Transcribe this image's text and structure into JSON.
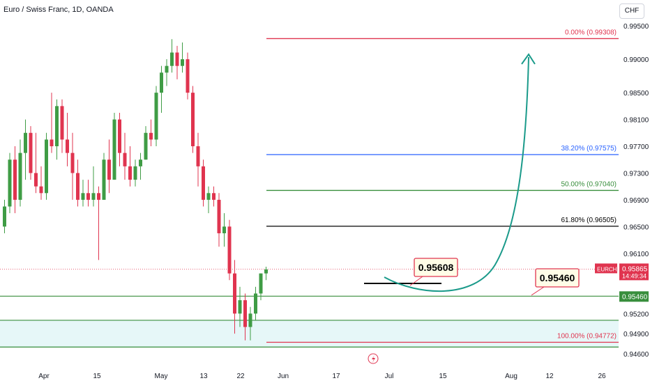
{
  "header": {
    "title": "Euro / Swiss Franc, 1D, OANDA",
    "currency": "CHF"
  },
  "chart_data": {
    "type": "candlestick",
    "symbol": "EURCHF",
    "y_ticks": [
      "0.99500",
      "0.99000",
      "0.98500",
      "0.98100",
      "0.97700",
      "0.97300",
      "0.96900",
      "0.96500",
      "0.96100",
      "0.95200",
      "0.94900",
      "0.94600"
    ],
    "x_ticks": [
      "Apr",
      "15",
      "May",
      "13",
      "22",
      "Jun",
      "17",
      "Jul",
      "15",
      "Aug",
      "12",
      "26"
    ],
    "price_label": {
      "symbol": "EURCHF",
      "price": "0.95865",
      "countdown": "14:49:34"
    },
    "level_tag": "0.95460",
    "callouts": [
      "0.95608",
      "0.95460"
    ],
    "fib_levels": [
      {
        "label": "0.00% (0.99308)",
        "price": 0.99308,
        "color": "#e0344f"
      },
      {
        "label": "38.20% (0.97575)",
        "price": 0.97575,
        "color": "#2962ff"
      },
      {
        "label": "50.00% (0.97040)",
        "price": 0.9704,
        "color": "#388e3c"
      },
      {
        "label": "61.80% (0.96505)",
        "price": 0.96505,
        "color": "#000000"
      },
      {
        "label": "100.00% (0.94772)",
        "price": 0.94772,
        "color": "#e0344f"
      }
    ],
    "support_zone": [
      0.947,
      0.951
    ],
    "support_line": 0.9546,
    "candles": [
      [
        0.965,
        0.969,
        0.964,
        0.968
      ],
      [
        0.968,
        0.976,
        0.967,
        0.975
      ],
      [
        0.975,
        0.977,
        0.967,
        0.969
      ],
      [
        0.969,
        0.978,
        0.968,
        0.976
      ],
      [
        0.976,
        0.981,
        0.972,
        0.979
      ],
      [
        0.979,
        0.98,
        0.972,
        0.973
      ],
      [
        0.973,
        0.979,
        0.97,
        0.971
      ],
      [
        0.971,
        0.974,
        0.969,
        0.97
      ],
      [
        0.97,
        0.979,
        0.969,
        0.978
      ],
      [
        0.978,
        0.985,
        0.976,
        0.977
      ],
      [
        0.977,
        0.984,
        0.975,
        0.983
      ],
      [
        0.983,
        0.984,
        0.976,
        0.978
      ],
      [
        0.978,
        0.982,
        0.974,
        0.976
      ],
      [
        0.976,
        0.979,
        0.969,
        0.973
      ],
      [
        0.973,
        0.975,
        0.968,
        0.969
      ],
      [
        0.969,
        0.972,
        0.968,
        0.97
      ],
      [
        0.97,
        0.972,
        0.968,
        0.969
      ],
      [
        0.969,
        0.974,
        0.968,
        0.97
      ],
      [
        0.97,
        0.971,
        0.96,
        0.969
      ],
      [
        0.969,
        0.976,
        0.969,
        0.975
      ],
      [
        0.975,
        0.978,
        0.97,
        0.972
      ],
      [
        0.972,
        0.982,
        0.972,
        0.981
      ],
      [
        0.981,
        0.982,
        0.974,
        0.976
      ],
      [
        0.976,
        0.979,
        0.972,
        0.974
      ],
      [
        0.974,
        0.977,
        0.971,
        0.972
      ],
      [
        0.972,
        0.975,
        0.971,
        0.974
      ],
      [
        0.974,
        0.976,
        0.972,
        0.975
      ],
      [
        0.975,
        0.98,
        0.975,
        0.979
      ],
      [
        0.979,
        0.981,
        0.977,
        0.978
      ],
      [
        0.978,
        0.986,
        0.977,
        0.985
      ],
      [
        0.985,
        0.989,
        0.982,
        0.988
      ],
      [
        0.988,
        0.99,
        0.986,
        0.989
      ],
      [
        0.989,
        0.993,
        0.988,
        0.991
      ],
      [
        0.991,
        0.992,
        0.987,
        0.989
      ],
      [
        0.989,
        0.9925,
        0.988,
        0.99
      ],
      [
        0.99,
        0.991,
        0.984,
        0.985
      ],
      [
        0.985,
        0.986,
        0.976,
        0.977
      ],
      [
        0.977,
        0.979,
        0.971,
        0.974
      ],
      [
        0.974,
        0.975,
        0.968,
        0.969
      ],
      [
        0.969,
        0.971,
        0.967,
        0.97
      ],
      [
        0.97,
        0.971,
        0.968,
        0.969
      ],
      [
        0.969,
        0.97,
        0.962,
        0.964
      ],
      [
        0.964,
        0.967,
        0.962,
        0.965
      ],
      [
        0.965,
        0.966,
        0.957,
        0.958
      ],
      [
        0.958,
        0.96,
        0.949,
        0.952
      ],
      [
        0.952,
        0.956,
        0.95,
        0.954
      ],
      [
        0.954,
        0.955,
        0.948,
        0.95
      ],
      [
        0.95,
        0.953,
        0.948,
        0.952
      ],
      [
        0.952,
        0.956,
        0.951,
        0.955
      ],
      [
        0.955,
        0.958,
        0.954,
        0.958
      ],
      [
        0.958,
        0.959,
        0.957,
        0.9586
      ]
    ]
  }
}
